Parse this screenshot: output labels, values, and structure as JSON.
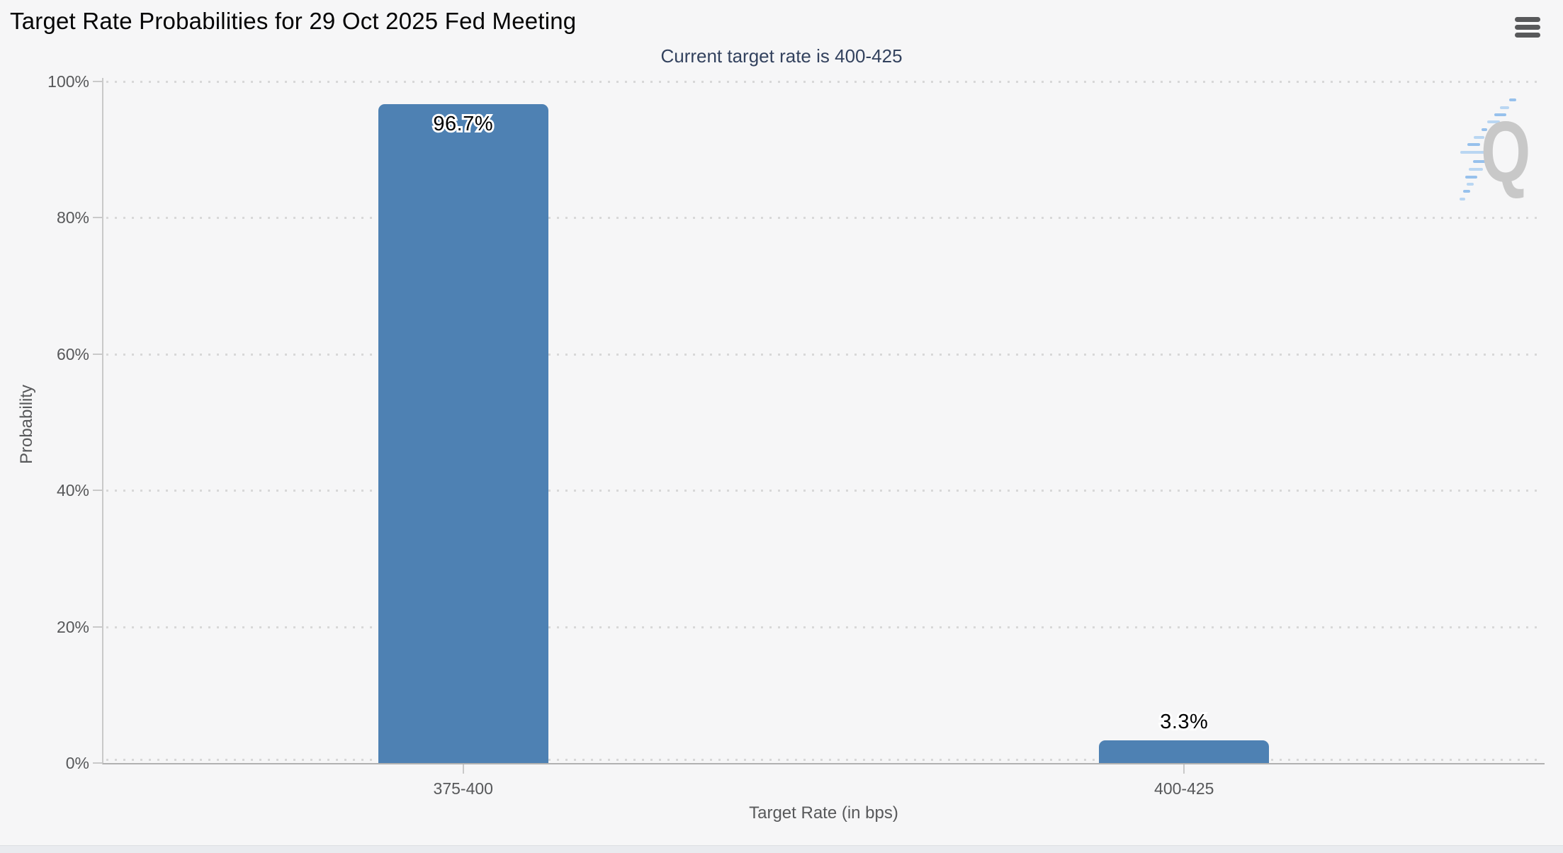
{
  "header": {
    "menu_icon": "hamburger-menu-icon"
  },
  "chart": {
    "colors": {
      "background": "#f6f6f7",
      "bar": "#4e81b3",
      "subtitle_text": "#33425e",
      "title_text": "#050505",
      "axis_text": "#57585a",
      "grid_dots": "#d8d8d8",
      "axis_line": "#c9c9c9",
      "baseline": "#b1b1b1",
      "watermark_q": "#c8c8c8",
      "watermark_dashes": "#a9cdf0",
      "value_label_text": "#000000",
      "value_label_outline": "#ffffff"
    }
  },
  "chart_data": {
    "type": "bar",
    "title": "Target Rate Probabilities for 29 Oct 2025 Fed Meeting",
    "subtitle": "Current target rate is 400-425",
    "categories": [
      "375-400",
      "400-425"
    ],
    "values": [
      96.7,
      3.3
    ],
    "data_labels": [
      "96.7%",
      "3.3%"
    ],
    "xlabel": "Target Rate (in bps)",
    "ylabel": "Probability",
    "ylim": [
      0,
      100
    ],
    "yticks": [
      0,
      20,
      40,
      60,
      80,
      100
    ],
    "ytick_labels": [
      "0%",
      "20%",
      "40%",
      "60%",
      "80%",
      "100%"
    ],
    "grid": "horizontal dotted",
    "legend": "none",
    "bar_color": "#4e81b3"
  },
  "watermark": {
    "letter": "Q"
  }
}
